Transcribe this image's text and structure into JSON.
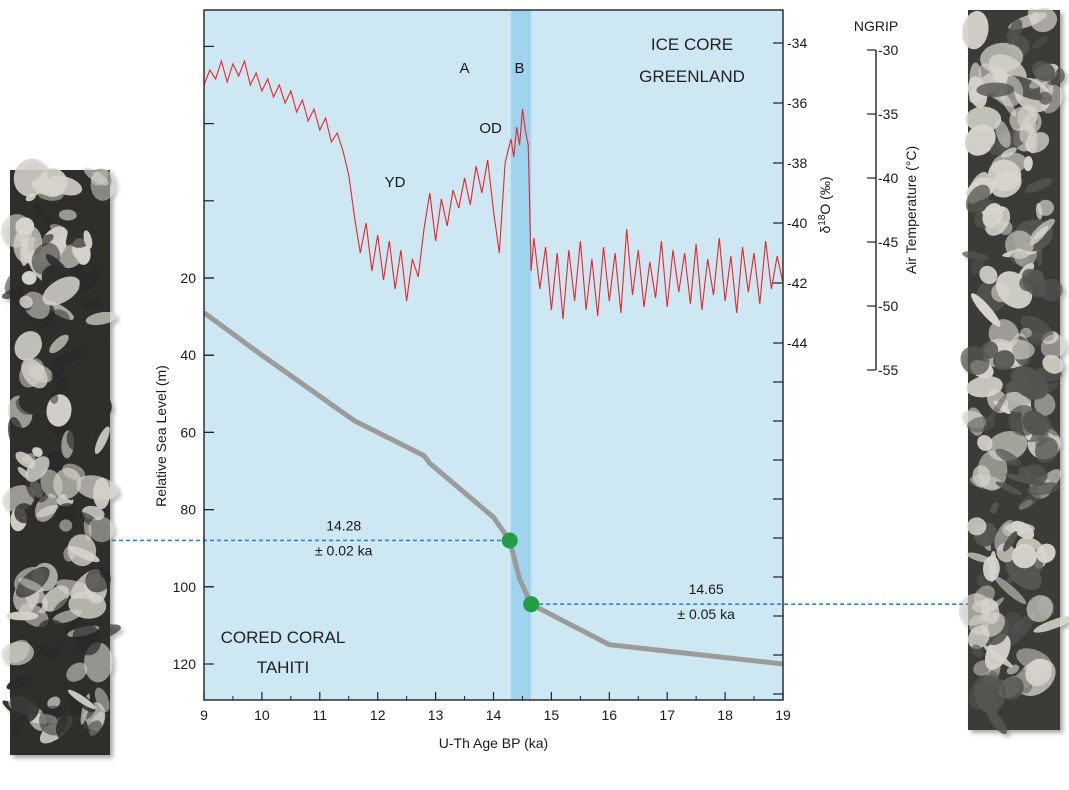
{
  "chart_data": {
    "type": "line",
    "panel_labels": {
      "ice_core": [
        "ICE CORE",
        "GREENLAND"
      ],
      "coral": [
        "CORED CORAL",
        "TAHITI"
      ]
    },
    "x_axis": {
      "label": "U-Th Age BP (ka)",
      "range": [
        9,
        19
      ],
      "ticks": [
        9,
        10,
        11,
        12,
        13,
        14,
        15,
        16,
        17,
        18,
        19
      ]
    },
    "y_axis_sea_level": {
      "label": "Relative Sea Level (m)",
      "inverted": true,
      "ticks": [
        20,
        40,
        60,
        80,
        100,
        120
      ]
    },
    "y_axis_d18o": {
      "label": "δ¹⁸O (‰)",
      "label_parts": {
        "prefix": "δ",
        "sup": "18",
        "suffix": "O (‰)"
      },
      "ticks": [
        -34,
        -36,
        -38,
        -40,
        -42,
        -44
      ]
    },
    "y_axis_temperature": {
      "header": "NGRIP",
      "label": "Air Temperature (°C)",
      "ticks": [
        -30,
        -35,
        -40,
        -45,
        -50,
        -55
      ]
    },
    "highlight_band": {
      "x_range": [
        14.3,
        14.65
      ],
      "color": "#9fd3ee"
    },
    "event_labels": [
      {
        "text": "A",
        "x": 13.5,
        "d18o": -35.0
      },
      {
        "text": "B",
        "x": 14.45,
        "d18o": -35.0
      },
      {
        "text": "OD",
        "x": 13.95,
        "d18o": -37.0
      },
      {
        "text": "YD",
        "x": 12.3,
        "d18o": -38.8
      }
    ],
    "series": [
      {
        "axis": "d18o",
        "color": "#e8252a",
        "points": [
          [
            9.0,
            -35.4
          ],
          [
            9.1,
            -34.9
          ],
          [
            9.2,
            -35.2
          ],
          [
            9.3,
            -34.6
          ],
          [
            9.4,
            -35.3
          ],
          [
            9.5,
            -34.7
          ],
          [
            9.6,
            -35.1
          ],
          [
            9.7,
            -34.6
          ],
          [
            9.8,
            -35.4
          ],
          [
            9.9,
            -35.0
          ],
          [
            10.0,
            -35.6
          ],
          [
            10.1,
            -35.2
          ],
          [
            10.2,
            -35.8
          ],
          [
            10.3,
            -35.4
          ],
          [
            10.4,
            -36.0
          ],
          [
            10.5,
            -35.6
          ],
          [
            10.6,
            -36.3
          ],
          [
            10.7,
            -35.9
          ],
          [
            10.8,
            -36.6
          ],
          [
            10.9,
            -36.2
          ],
          [
            11.0,
            -36.9
          ],
          [
            11.1,
            -36.5
          ],
          [
            11.2,
            -37.3
          ],
          [
            11.3,
            -37.0
          ],
          [
            11.4,
            -37.6
          ],
          [
            11.5,
            -38.4
          ],
          [
            11.6,
            -39.8
          ],
          [
            11.7,
            -41.0
          ],
          [
            11.8,
            -40.0
          ],
          [
            11.9,
            -41.6
          ],
          [
            12.0,
            -40.4
          ],
          [
            12.1,
            -41.9
          ],
          [
            12.2,
            -40.6
          ],
          [
            12.3,
            -42.2
          ],
          [
            12.4,
            -40.9
          ],
          [
            12.5,
            -42.6
          ],
          [
            12.6,
            -41.2
          ],
          [
            12.7,
            -41.8
          ],
          [
            12.8,
            -40.2
          ],
          [
            12.9,
            -39.0
          ],
          [
            13.0,
            -40.6
          ],
          [
            13.1,
            -39.2
          ],
          [
            13.2,
            -40.1
          ],
          [
            13.3,
            -38.9
          ],
          [
            13.4,
            -39.5
          ],
          [
            13.5,
            -38.5
          ],
          [
            13.6,
            -39.4
          ],
          [
            13.7,
            -38.1
          ],
          [
            13.8,
            -39.0
          ],
          [
            13.9,
            -37.9
          ],
          [
            14.0,
            -39.6
          ],
          [
            14.1,
            -41.0
          ],
          [
            14.2,
            -38.0
          ],
          [
            14.3,
            -37.2
          ],
          [
            14.35,
            -37.8
          ],
          [
            14.4,
            -36.8
          ],
          [
            14.45,
            -37.4
          ],
          [
            14.5,
            -36.2
          ],
          [
            14.55,
            -36.9
          ],
          [
            14.6,
            -37.4
          ],
          [
            14.62,
            -39.0
          ],
          [
            14.65,
            -41.6
          ],
          [
            14.7,
            -40.5
          ],
          [
            14.8,
            -42.2
          ],
          [
            14.9,
            -40.8
          ],
          [
            15.0,
            -42.9
          ],
          [
            15.1,
            -41.0
          ],
          [
            15.2,
            -43.2
          ],
          [
            15.3,
            -40.9
          ],
          [
            15.4,
            -42.6
          ],
          [
            15.5,
            -40.6
          ],
          [
            15.6,
            -42.9
          ],
          [
            15.7,
            -41.2
          ],
          [
            15.8,
            -43.1
          ],
          [
            15.9,
            -40.8
          ],
          [
            16.0,
            -42.6
          ],
          [
            16.1,
            -41.0
          ],
          [
            16.2,
            -43.0
          ],
          [
            16.3,
            -40.2
          ],
          [
            16.4,
            -42.4
          ],
          [
            16.5,
            -40.9
          ],
          [
            16.6,
            -42.8
          ],
          [
            16.7,
            -41.3
          ],
          [
            16.8,
            -42.5
          ],
          [
            16.9,
            -40.6
          ],
          [
            17.0,
            -42.8
          ],
          [
            17.1,
            -40.9
          ],
          [
            17.2,
            -42.3
          ],
          [
            17.3,
            -41.0
          ],
          [
            17.4,
            -42.7
          ],
          [
            17.5,
            -40.7
          ],
          [
            17.6,
            -42.9
          ],
          [
            17.7,
            -41.2
          ],
          [
            17.8,
            -42.4
          ],
          [
            17.9,
            -40.5
          ],
          [
            18.0,
            -42.6
          ],
          [
            18.1,
            -41.1
          ],
          [
            18.2,
            -43.0
          ],
          [
            18.3,
            -40.8
          ],
          [
            18.4,
            -42.3
          ],
          [
            18.5,
            -41.0
          ],
          [
            18.6,
            -42.7
          ],
          [
            18.7,
            -40.6
          ],
          [
            18.8,
            -42.2
          ],
          [
            18.9,
            -41.1
          ],
          [
            19.0,
            -42.0
          ]
        ]
      },
      {
        "axis": "sea_level",
        "color": "#9b9b9b",
        "points": [
          [
            9.0,
            29
          ],
          [
            10.0,
            40
          ],
          [
            11.6,
            57
          ],
          [
            12.8,
            66
          ],
          [
            12.9,
            68
          ],
          [
            14.0,
            82
          ],
          [
            14.28,
            88
          ],
          [
            14.45,
            98
          ],
          [
            14.65,
            104.5
          ],
          [
            16.0,
            115
          ],
          [
            19.0,
            120
          ]
        ]
      }
    ],
    "markers": [
      {
        "x": 14.28,
        "sea_level": 88,
        "color": "#1f9e46",
        "label_lines": [
          "14.28",
          "± 0.02 ka"
        ],
        "label_side": "left"
      },
      {
        "x": 14.65,
        "sea_level": 104.5,
        "color": "#1f9e46",
        "label_lines": [
          "14.65",
          "± 0.05 ka"
        ],
        "label_side": "right"
      }
    ]
  },
  "colors": {
    "plot_background": "#cde7f3",
    "core_dark": "#2d2d2b",
    "core_light": "#d6d4cc",
    "guide_line": "#2b86c5"
  },
  "core_photos": [
    "left-core-photo",
    "right-core-photo"
  ]
}
